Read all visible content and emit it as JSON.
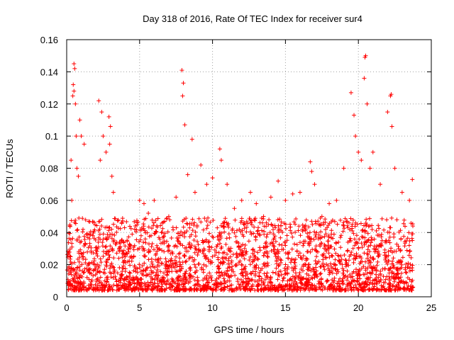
{
  "chart_data": {
    "type": "scatter",
    "title": "Day 318 of 2016, Rate Of TEC Index for receiver sur4",
    "xlabel": "GPS time / hours",
    "ylabel": "ROTI / TECUs",
    "xlim": [
      0,
      25
    ],
    "ylim": [
      0,
      0.16
    ],
    "xticks": [
      0,
      5,
      10,
      15,
      20,
      25
    ],
    "xtick_labels": [
      "0",
      "5",
      "10",
      "15",
      "20",
      "25"
    ],
    "yticks": [
      0,
      0.02,
      0.04,
      0.06,
      0.08,
      0.1,
      0.12,
      0.14,
      0.16
    ],
    "ytick_labels": [
      "0",
      "0.02",
      "0.04",
      "0.06",
      "0.08",
      "0.1",
      "0.12",
      "0.14",
      "0.16"
    ],
    "grid": true,
    "marker": "+",
    "color": "#ff0000",
    "series": [
      {
        "x": [
          0.5,
          0.55,
          0.45,
          0.5,
          0.6,
          0.42,
          0.65,
          0.7,
          0.9,
          1.0,
          0.8,
          0.3,
          0.35,
          1.2,
          2.2,
          2.4,
          2.5,
          2.3,
          2.7,
          2.9,
          3.0,
          3.1,
          3.2,
          2.95,
          5.0,
          5.3,
          5.6,
          6.0,
          6.5,
          7.0,
          7.5,
          7.9,
          8.0,
          7.95,
          8.1,
          8.3,
          8.6,
          8.8,
          9.2,
          9.6,
          10.0,
          10.5,
          10.6,
          11.0,
          11.5,
          12.0,
          12.6,
          13.0,
          13.5,
          14.0,
          14.5,
          15.0,
          15.5,
          16.0,
          16.7,
          16.8,
          17.0,
          17.5,
          18.0,
          18.5,
          19.0,
          19.5,
          19.7,
          19.8,
          20.0,
          20.2,
          20.4,
          20.45,
          20.5,
          20.6,
          20.8,
          21.0,
          21.5,
          22.0,
          22.2,
          22.25,
          22.3,
          22.5,
          23.0,
          23.5,
          23.7
        ],
        "y": [
          0.145,
          0.142,
          0.132,
          0.128,
          0.12,
          0.125,
          0.1,
          0.08,
          0.11,
          0.1,
          0.075,
          0.085,
          0.06,
          0.095,
          0.122,
          0.115,
          0.1,
          0.085,
          0.09,
          0.112,
          0.106,
          0.075,
          0.065,
          0.095,
          0.06,
          0.058,
          0.052,
          0.06,
          0.04,
          0.05,
          0.062,
          0.141,
          0.133,
          0.125,
          0.107,
          0.076,
          0.098,
          0.065,
          0.082,
          0.07,
          0.074,
          0.092,
          0.085,
          0.07,
          0.055,
          0.06,
          0.065,
          0.058,
          0.05,
          0.062,
          0.072,
          0.06,
          0.064,
          0.065,
          0.084,
          0.078,
          0.07,
          0.05,
          0.058,
          0.06,
          0.08,
          0.127,
          0.113,
          0.1,
          0.09,
          0.085,
          0.136,
          0.149,
          0.15,
          0.12,
          0.08,
          0.09,
          0.07,
          0.115,
          0.125,
          0.126,
          0.106,
          0.08,
          0.065,
          0.06,
          0.073
        ]
      }
    ]
  }
}
